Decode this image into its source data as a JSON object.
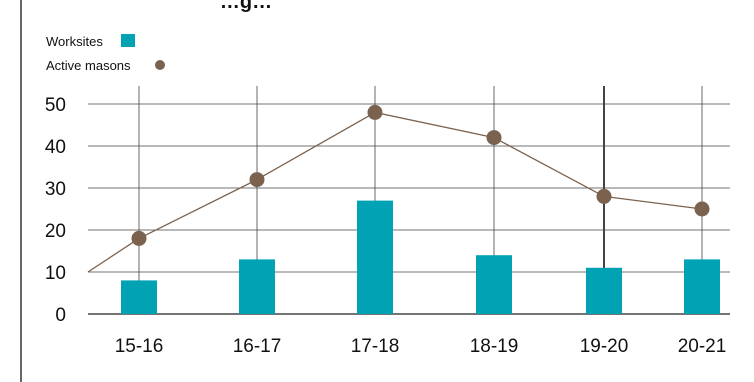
{
  "chart_data": {
    "type": "bar",
    "title": "…g…",
    "categories": [
      "15-16",
      "16-17",
      "17-18",
      "18-19",
      "19-20",
      "20-21"
    ],
    "series": [
      {
        "name": "Worksites",
        "type": "bar",
        "color": "#00a2b4",
        "values": [
          8,
          13,
          27,
          14,
          11,
          13
        ]
      },
      {
        "name": "Active masons",
        "type": "line",
        "color": "#7a624f",
        "values": [
          18,
          32,
          48,
          42,
          28,
          25
        ],
        "line_start_value": 10
      }
    ],
    "y_ticks": [
      0,
      10,
      20,
      30,
      40,
      50
    ],
    "ylim": [
      0,
      50
    ],
    "grid": true,
    "legend_position": "top-left",
    "xlabel": "",
    "ylabel": ""
  }
}
